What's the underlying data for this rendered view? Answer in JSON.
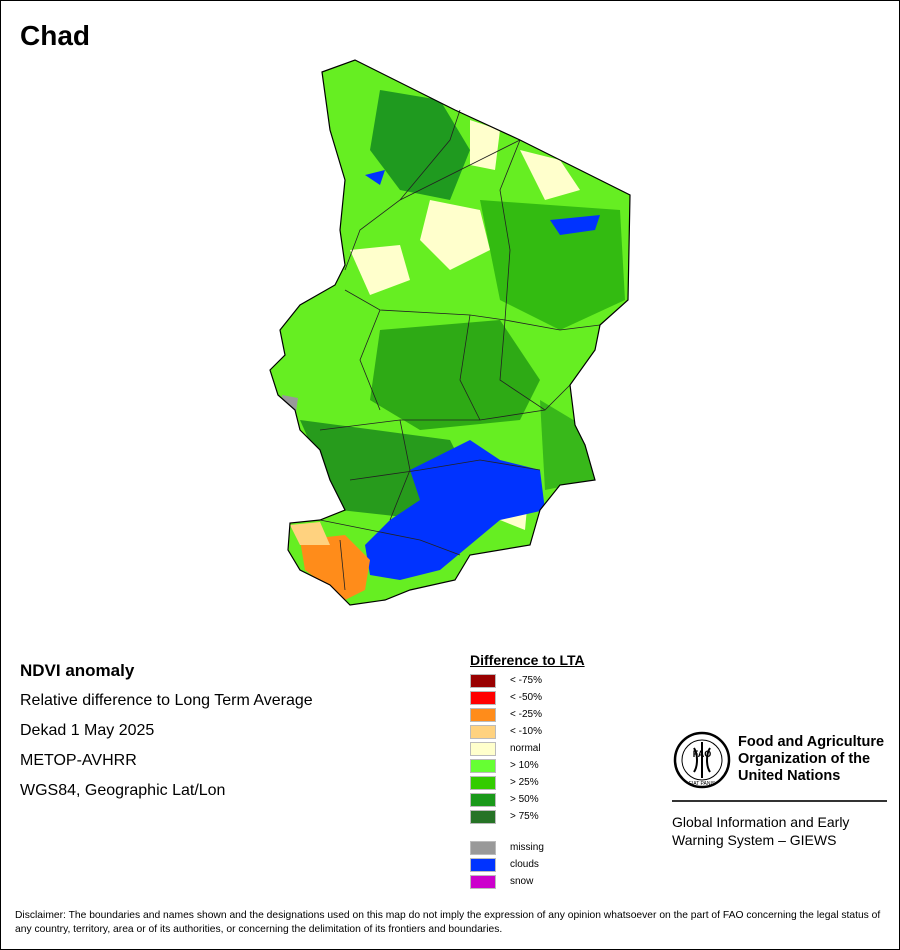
{
  "title": "Chad",
  "info": {
    "heading": "NDVI anomaly",
    "line1": "Relative difference to Long Term Average",
    "line2": "Dekad 1 May 2025",
    "line3": "METOP-AVHRR",
    "line4": "WGS84, Geographic Lat/Lon"
  },
  "legend": {
    "title": "Difference to LTA",
    "items": [
      {
        "label": "< -75%",
        "color": "#990000"
      },
      {
        "label": "< -50%",
        "color": "#ff0000"
      },
      {
        "label": "< -25%",
        "color": "#ff8c1a"
      },
      {
        "label": "< -10%",
        "color": "#ffd27f"
      },
      {
        "label": "normal",
        "color": "#ffffcc"
      },
      {
        "label": "> 10%",
        "color": "#66ff33"
      },
      {
        "label": "> 25%",
        "color": "#33cc00"
      },
      {
        "label": "> 50%",
        "color": "#1a991a"
      },
      {
        "label": "> 75%",
        "color": "#267326"
      }
    ],
    "extra": [
      {
        "label": "missing",
        "color": "#999999"
      },
      {
        "label": "clouds",
        "color": "#0033ff"
      },
      {
        "label": "snow",
        "color": "#cc00cc"
      }
    ]
  },
  "fao": {
    "name_line1": "Food and Agriculture",
    "name_line2": "Organization of the",
    "name_line3": "United Nations",
    "logo_text": "FAO",
    "logo_motto": "FIAT PANIS",
    "sub_line1": "Global Information and Early",
    "sub_line2": "Warning System – GIEWS"
  },
  "disclaimer": "Disclaimer: The boundaries and names shown and the designations used on this map do not imply the expression of any opinion whatsoever on the part of FAO concerning the legal status of any country, territory, area or of its authorities, or concerning the delimitation of its frontiers and boundaries."
}
